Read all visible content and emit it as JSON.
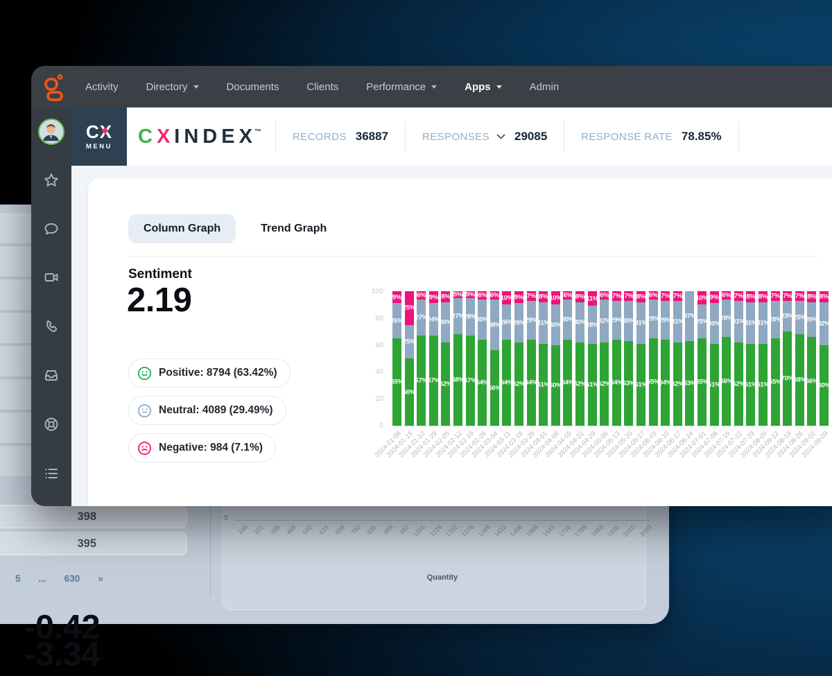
{
  "window": {
    "nav": {
      "items": [
        {
          "label": "Activity",
          "caret": false,
          "active": false
        },
        {
          "label": "Directory",
          "caret": true,
          "active": false
        },
        {
          "label": "Documents",
          "caret": false,
          "active": false
        },
        {
          "label": "Clients",
          "caret": false,
          "active": false
        },
        {
          "label": "Performance",
          "caret": true,
          "active": false
        },
        {
          "label": "Apps",
          "caret": true,
          "active": true
        },
        {
          "label": "Admin",
          "caret": false,
          "active": false
        }
      ]
    },
    "sidebar": {
      "icons": [
        "avatar",
        "star",
        "chat-bubble",
        "video-camera",
        "phone",
        "inbox-tray",
        "life-buoy",
        "list"
      ]
    },
    "header": {
      "menu_logo": {
        "top": "CX",
        "bottom": "MENU"
      },
      "brand": {
        "c": "C",
        "x": "X",
        "rest": "INDEX",
        "tm": "™"
      },
      "stats": [
        {
          "label": "RECORDS",
          "value": "36887",
          "caret": false
        },
        {
          "label": "RESPONSES",
          "value": "29085",
          "caret": true
        },
        {
          "label": "RESPONSE RATE",
          "value": "78.85%",
          "caret": false
        }
      ]
    },
    "tabs": [
      {
        "label": "Column Graph",
        "active": true
      },
      {
        "label": "Trend Graph",
        "active": false
      }
    ],
    "sentiment": {
      "title": "Sentiment",
      "score": "2.19",
      "badges": [
        {
          "icon": "smiley-positive",
          "label": "Positive: 8794 (63.42%)",
          "color": "#21B24B"
        },
        {
          "icon": "smiley-neutral",
          "label": "Neutral: 4089 (29.49%)",
          "color": "#8FA9C4"
        },
        {
          "icon": "smiley-negative",
          "label": "Negative: 984 (7.1%)",
          "color": "#F0117A"
        }
      ]
    }
  },
  "chart_data": {
    "type": "bar",
    "stacked": true,
    "unit": "percent",
    "ylim": [
      0,
      100
    ],
    "yticks": [
      100,
      80,
      60,
      40,
      20,
      0
    ],
    "grid": true,
    "categories": [
      "2024-01-08",
      "2024-01-15",
      "2024-01-22",
      "2024-01-29",
      "2024-02-05",
      "2024-02-12",
      "2024-02-19",
      "2024-02-26",
      "2024-03-04",
      "2024-03-11",
      "2024-03-18",
      "2024-03-25",
      "2024-04-01",
      "2024-04-08",
      "2024-04-15",
      "2024-04-22",
      "2024-04-29",
      "2024-05-06",
      "2024-05-13",
      "2024-05-20",
      "2024-05-27",
      "2024-06-03",
      "2024-06-10",
      "2024-06-17",
      "2024-06-24",
      "2024-07-01",
      "2024-07-08",
      "2024-07-15",
      "2024-07-22",
      "2024-07-29",
      "2024-08-05",
      "2024-08-12",
      "2024-08-19",
      "2024-08-26",
      "2024-09-02",
      "2024-09-09"
    ],
    "series": [
      {
        "name": "Positive",
        "color": "#2EA435",
        "values": [
          65,
          50,
          67,
          67,
          62,
          68,
          67,
          64,
          56,
          64,
          62,
          64,
          61,
          60,
          64,
          62,
          61,
          62,
          64,
          63,
          61,
          65,
          64,
          62,
          63,
          65,
          61,
          66,
          62,
          61,
          61,
          65,
          70,
          68,
          66,
          60
        ]
      },
      {
        "name": "Neutral",
        "color": "#8FA9C2",
        "values": [
          26,
          25,
          27,
          24,
          30,
          27,
          28,
          30,
          38,
          26,
          29,
          29,
          31,
          30,
          30,
          30,
          28,
          32,
          29,
          30,
          31,
          29,
          29,
          31,
          37,
          25,
          30,
          28,
          31,
          31,
          31,
          28,
          23,
          25,
          26,
          32
        ]
      },
      {
        "name": "Negative",
        "color": "#F0117A",
        "values": [
          9,
          25,
          6,
          9,
          8,
          5,
          5,
          6,
          6,
          10,
          9,
          7,
          8,
          10,
          6,
          8,
          11,
          6,
          7,
          7,
          8,
          6,
          7,
          7,
          0,
          10,
          9,
          6,
          7,
          8,
          8,
          7,
          7,
          7,
          8,
          8
        ]
      }
    ]
  },
  "background_page": {
    "table_rows": [
      {
        "qty": "398",
        "score": "-0.42"
      },
      {
        "qty": "395",
        "score": "-3.34"
      }
    ],
    "pagination": [
      "5",
      "...",
      "630",
      "»"
    ],
    "axis": {
      "origin_label": "-5",
      "title": "Quantity",
      "ticks": [
        "248",
        "321",
        "395",
        "468",
        "542",
        "615",
        "688",
        "762",
        "835",
        "909",
        "982",
        "1055",
        "1129",
        "1202",
        "1276",
        "1349",
        "1422",
        "1496",
        "1569",
        "1643",
        "1716",
        "1789",
        "1863",
        "1936",
        "2010",
        "2083"
      ]
    }
  },
  "colors": {
    "positive": "#2EA435",
    "neutral": "#8FA9C2",
    "negative": "#F0117A",
    "accent_orange": "#F2541B",
    "brand_green": "#3BB54A",
    "brand_pink": "#EE2D6E",
    "navy_block": "#2E4153"
  }
}
